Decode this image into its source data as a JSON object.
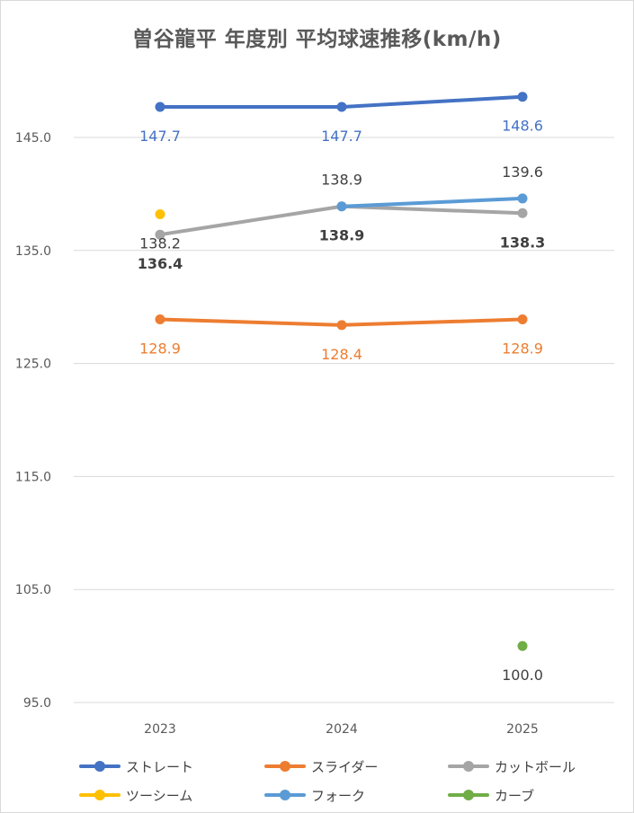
{
  "chart_data": {
    "type": "line",
    "title": "曽谷龍平 年度別 平均球速推移(km/h)",
    "categories": [
      "2023",
      "2024",
      "2025"
    ],
    "ylim": [
      95,
      150
    ],
    "yticks": [
      "95.0",
      "105.0",
      "115.0",
      "125.0",
      "135.0",
      "145.0"
    ],
    "grid": true,
    "legend_position": "bottom",
    "series": [
      {
        "name": "ストレート",
        "color": "#4472c4",
        "values": [
          147.7,
          147.7,
          148.6
        ],
        "labels": [
          "147.7",
          "147.7",
          "148.6"
        ],
        "label_color": "#4472c4",
        "label_bold": false,
        "label_pos": "below"
      },
      {
        "name": "スライダー",
        "color": "#ed7d31",
        "values": [
          128.9,
          128.4,
          128.9
        ],
        "labels": [
          "128.9",
          "128.4",
          "128.9"
        ],
        "label_color": "#ed7d31",
        "label_bold": false,
        "label_pos": "below"
      },
      {
        "name": "カットボール",
        "color": "#a5a5a5",
        "values": [
          136.4,
          138.9,
          138.3
        ],
        "labels": [
          "136.4",
          "138.9",
          "138.3"
        ],
        "label_color": "#404040",
        "label_bold": true,
        "label_pos": "below"
      },
      {
        "name": "ツーシーム",
        "color": "#ffc000",
        "values": [
          138.2,
          null,
          null
        ],
        "labels": [
          "138.2",
          "",
          ""
        ],
        "label_color": "#404040",
        "label_bold": false,
        "label_pos": "below"
      },
      {
        "name": "フォーク",
        "color": "#5b9bd5",
        "values": [
          null,
          138.9,
          139.6
        ],
        "labels": [
          "",
          "138.9",
          "139.6"
        ],
        "label_color": "#404040",
        "label_bold": false,
        "label_pos": "above"
      },
      {
        "name": "カーブ",
        "color": "#70ad47",
        "values": [
          null,
          null,
          100.0
        ],
        "labels": [
          "",
          "",
          "100.0"
        ],
        "label_color": "#404040",
        "label_bold": false,
        "label_pos": "below"
      }
    ]
  }
}
